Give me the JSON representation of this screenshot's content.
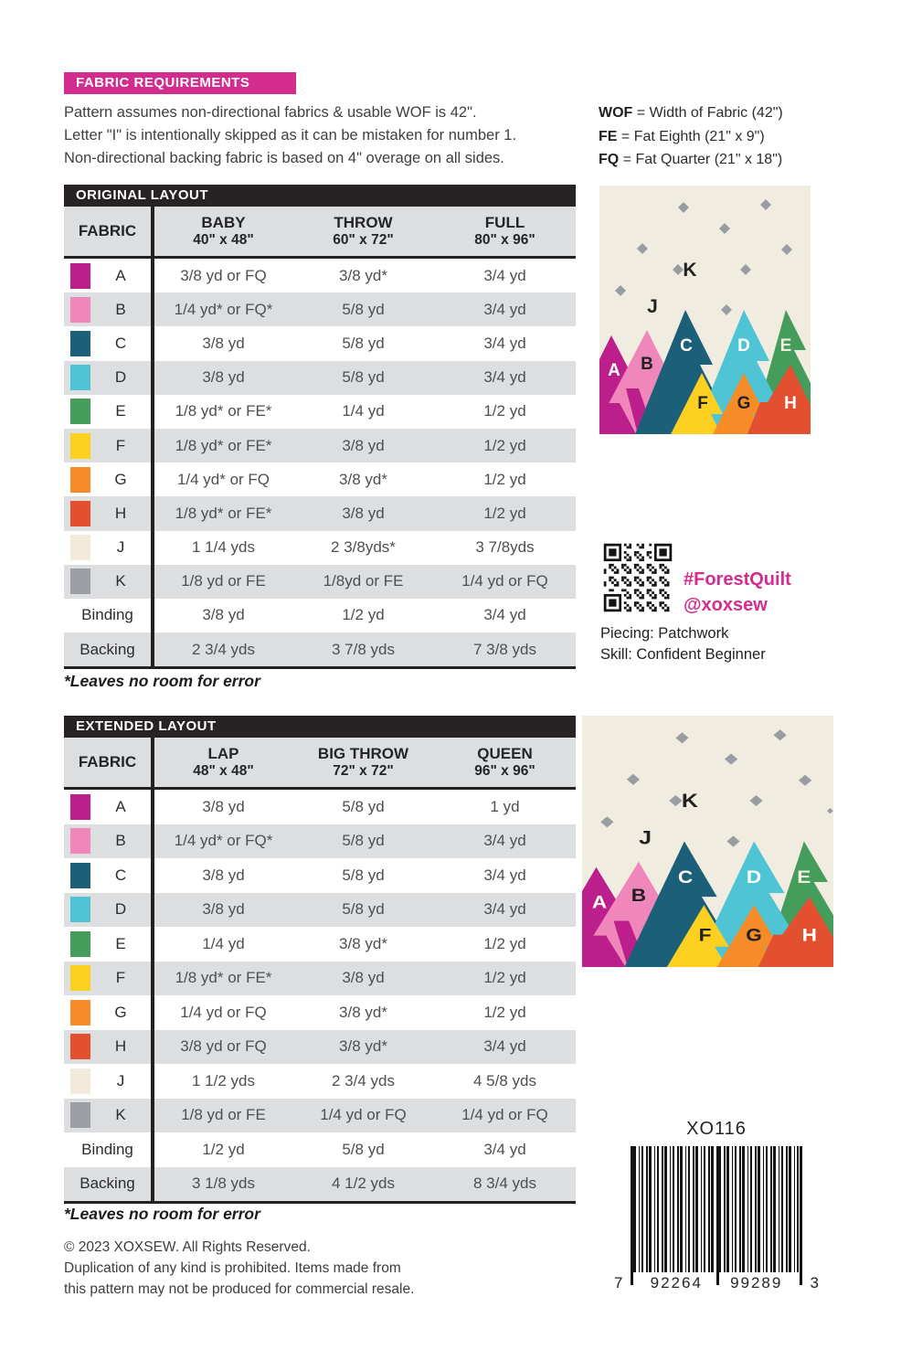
{
  "header": {
    "title": "FABRIC REQUIREMENTS",
    "intro_lines": [
      "Pattern assumes non-directional fabrics & usable WOF is 42\".",
      "Letter \"I\" is intentionally skipped as it can be mistaken for number 1.",
      "Non-directional backing fabric is based on 4\" overage on all sides."
    ],
    "definitions": [
      {
        "term": "WOF",
        "rest": " = Width of Fabric (42\")"
      },
      {
        "term": "FE",
        "rest": " = Fat Eighth (21\" x 9\")"
      },
      {
        "term": "FQ",
        "rest": " = Fat Quarter (21\" x 18\")"
      }
    ]
  },
  "original_layout": {
    "title": "ORIGINAL LAYOUT",
    "fabric_header": "FABRIC",
    "columns": [
      {
        "name": "BABY",
        "size": "40\" x 48\""
      },
      {
        "name": "THROW",
        "size": "60\" x 72\""
      },
      {
        "name": "FULL",
        "size": "80\" x 96\""
      }
    ],
    "rows": [
      {
        "label": "A",
        "swatch": "#bc1f8b",
        "values": [
          "3/8 yd or FQ",
          "3/8 yd*",
          "3/4 yd"
        ]
      },
      {
        "label": "B",
        "swatch": "#f087bb",
        "values": [
          "1/4 yd* or FQ*",
          "5/8 yd",
          "3/4 yd"
        ]
      },
      {
        "label": "C",
        "swatch": "#1c5f78",
        "values": [
          "3/8 yd",
          "5/8 yd",
          "3/4 yd"
        ]
      },
      {
        "label": "D",
        "swatch": "#4fc4d4",
        "values": [
          "3/8 yd",
          "5/8 yd",
          "3/4 yd"
        ]
      },
      {
        "label": "E",
        "swatch": "#449d5b",
        "values": [
          "1/8 yd* or FE*",
          "1/4 yd",
          "1/2 yd"
        ]
      },
      {
        "label": "F",
        "swatch": "#fcd020",
        "values": [
          "1/8 yd* or FE*",
          "3/8 yd",
          "1/2 yd"
        ]
      },
      {
        "label": "G",
        "swatch": "#f68c28",
        "values": [
          "1/4 yd* or FQ",
          "3/8 yd*",
          "1/2 yd"
        ]
      },
      {
        "label": "H",
        "swatch": "#e2502f",
        "values": [
          "1/8 yd* or FE*",
          "3/8 yd",
          "1/2 yd"
        ]
      },
      {
        "label": "J",
        "swatch": "#f2ebdc",
        "values": [
          "1 1/4 yds",
          "2 3/8yds*",
          "3 7/8yds"
        ]
      },
      {
        "label": "K",
        "swatch": "#9b9fa3",
        "values": [
          "1/8 yd or FE",
          "1/8yd or FE",
          "1/4 yd or FQ"
        ]
      },
      {
        "label": "Binding",
        "swatch": null,
        "values": [
          "3/8 yd",
          "1/2 yd",
          "3/4 yd"
        ]
      },
      {
        "label": "Backing",
        "swatch": null,
        "values": [
          "2 3/4 yds",
          "3 7/8 yds",
          "7 3/8 yds"
        ]
      }
    ],
    "footnote": "*Leaves no room for error"
  },
  "extended_layout": {
    "title": "EXTENDED LAYOUT",
    "fabric_header": "FABRIC",
    "columns": [
      {
        "name": "LAP",
        "size": "48\" x 48\""
      },
      {
        "name": "BIG THROW",
        "size": "72\" x 72\""
      },
      {
        "name": "QUEEN",
        "size": "96\" x 96\""
      }
    ],
    "rows": [
      {
        "label": "A",
        "swatch": "#bc1f8b",
        "values": [
          "3/8 yd",
          "5/8 yd",
          "1 yd"
        ]
      },
      {
        "label": "B",
        "swatch": "#f087bb",
        "values": [
          "1/4 yd* or FQ*",
          "5/8 yd",
          "3/4 yd"
        ]
      },
      {
        "label": "C",
        "swatch": "#1c5f78",
        "values": [
          "3/8 yd",
          "5/8 yd",
          "3/4 yd"
        ]
      },
      {
        "label": "D",
        "swatch": "#4fc4d4",
        "values": [
          "3/8 yd",
          "5/8 yd",
          "3/4 yd"
        ]
      },
      {
        "label": "E",
        "swatch": "#449d5b",
        "values": [
          "1/4 yd",
          "3/8 yd*",
          "1/2 yd"
        ]
      },
      {
        "label": "F",
        "swatch": "#fcd020",
        "values": [
          "1/8 yd* or FE*",
          "3/8 yd",
          "1/2 yd"
        ]
      },
      {
        "label": "G",
        "swatch": "#f68c28",
        "values": [
          "1/4 yd or FQ",
          "3/8 yd*",
          "1/2 yd"
        ]
      },
      {
        "label": "H",
        "swatch": "#e2502f",
        "values": [
          "3/8 yd or FQ",
          "3/8 yd*",
          "3/4 yd"
        ]
      },
      {
        "label": "J",
        "swatch": "#f2ebdc",
        "values": [
          "1 1/2 yds",
          "2 3/4 yds",
          "4 5/8 yds"
        ]
      },
      {
        "label": "K",
        "swatch": "#9b9fa3",
        "values": [
          "1/8 yd or FE",
          "1/4 yd or FQ",
          "1/4 yd or FQ"
        ]
      },
      {
        "label": "Binding",
        "swatch": null,
        "values": [
          "1/2 yd",
          "5/8 yd",
          "3/4 yd"
        ]
      },
      {
        "label": "Backing",
        "swatch": null,
        "values": [
          "3 1/8 yds",
          "4 1/2 yds",
          "8 3/4 yds"
        ]
      }
    ],
    "footnote": "*Leaves no room for error"
  },
  "quilt": {
    "labels": {
      "A": "A",
      "B": "B",
      "C": "C",
      "D": "D",
      "E": "E",
      "F": "F",
      "G": "G",
      "H": "H",
      "J": "J",
      "K": "K"
    }
  },
  "social": {
    "hashtag": "#ForestQuilt",
    "handle": "@xoxsew"
  },
  "details": {
    "piecing": "Piecing: Patchwork",
    "skill": "Skill: Confident Beginner"
  },
  "barcode": {
    "sku": "XO116",
    "digits": [
      "7",
      "92264",
      "99289",
      "3"
    ]
  },
  "copyright_lines": [
    "© 2023 XOXSEW. All Rights Reserved.",
    "Duplication of any kind is prohibited. Items made from",
    "this pattern may not be produced for commercial resale."
  ],
  "colors": {
    "accent": "#d42b8e",
    "bar_black": "#272324",
    "row_stripe": "#dcdee0",
    "cream": "#f1ece0",
    "diamond": "#999da1"
  }
}
